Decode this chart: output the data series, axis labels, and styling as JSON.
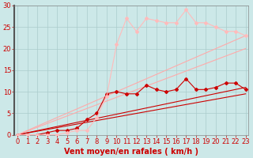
{
  "background_color": "#cce8e8",
  "grid_color": "#aacccc",
  "xlabel": "Vent moyen/en rafales ( km/h )",
  "xlabel_color": "#cc0000",
  "xlabel_fontsize": 7,
  "tick_color": "#cc0000",
  "tick_fontsize": 6,
  "yticks": [
    0,
    5,
    10,
    15,
    20,
    25,
    30
  ],
  "xticks": [
    0,
    1,
    2,
    3,
    4,
    5,
    6,
    7,
    8,
    9,
    10,
    11,
    12,
    13,
    14,
    15,
    16,
    17,
    18,
    19,
    20,
    21,
    22,
    23
  ],
  "xlim": [
    -0.3,
    23.3
  ],
  "ylim": [
    0,
    30
  ],
  "straight_lines": [
    {
      "slope": 0.413,
      "color": "#cc0000",
      "lw": 0.8
    },
    {
      "slope": 0.478,
      "color": "#cc0000",
      "lw": 0.8
    },
    {
      "slope": 0.87,
      "color": "#ffaaaa",
      "lw": 0.8
    },
    {
      "slope": 1.0,
      "color": "#ffaaaa",
      "lw": 0.8
    }
  ],
  "data_lines": [
    {
      "x": [
        0,
        1,
        2,
        3,
        4,
        5,
        6,
        7,
        8,
        9,
        10,
        11,
        12,
        13,
        14,
        15,
        16,
        17,
        18,
        19,
        20,
        21,
        22,
        23
      ],
      "y": [
        0,
        0,
        0,
        0.5,
        1,
        1,
        1.5,
        3.5,
        5,
        9.5,
        10,
        9.5,
        9.5,
        11.5,
        10.5,
        10,
        10.5,
        13,
        10.5,
        10.5,
        11,
        12,
        12,
        10.5
      ],
      "color": "#cc0000",
      "lw": 0.8,
      "marker": "D",
      "ms": 2.0
    },
    {
      "x": [
        0,
        1,
        2,
        3,
        4,
        5,
        6,
        7,
        8,
        9,
        10,
        11,
        12,
        13,
        14,
        15,
        16,
        17,
        18,
        19,
        20,
        21,
        22,
        23
      ],
      "y": [
        0,
        0,
        0,
        0,
        0,
        0.5,
        1,
        1,
        4,
        9,
        21,
        27,
        24,
        27,
        26.5,
        26,
        26,
        29,
        26,
        26,
        25,
        24,
        24,
        23
      ],
      "color": "#ffbbbb",
      "lw": 0.8,
      "marker": "D",
      "ms": 2.0
    }
  ]
}
